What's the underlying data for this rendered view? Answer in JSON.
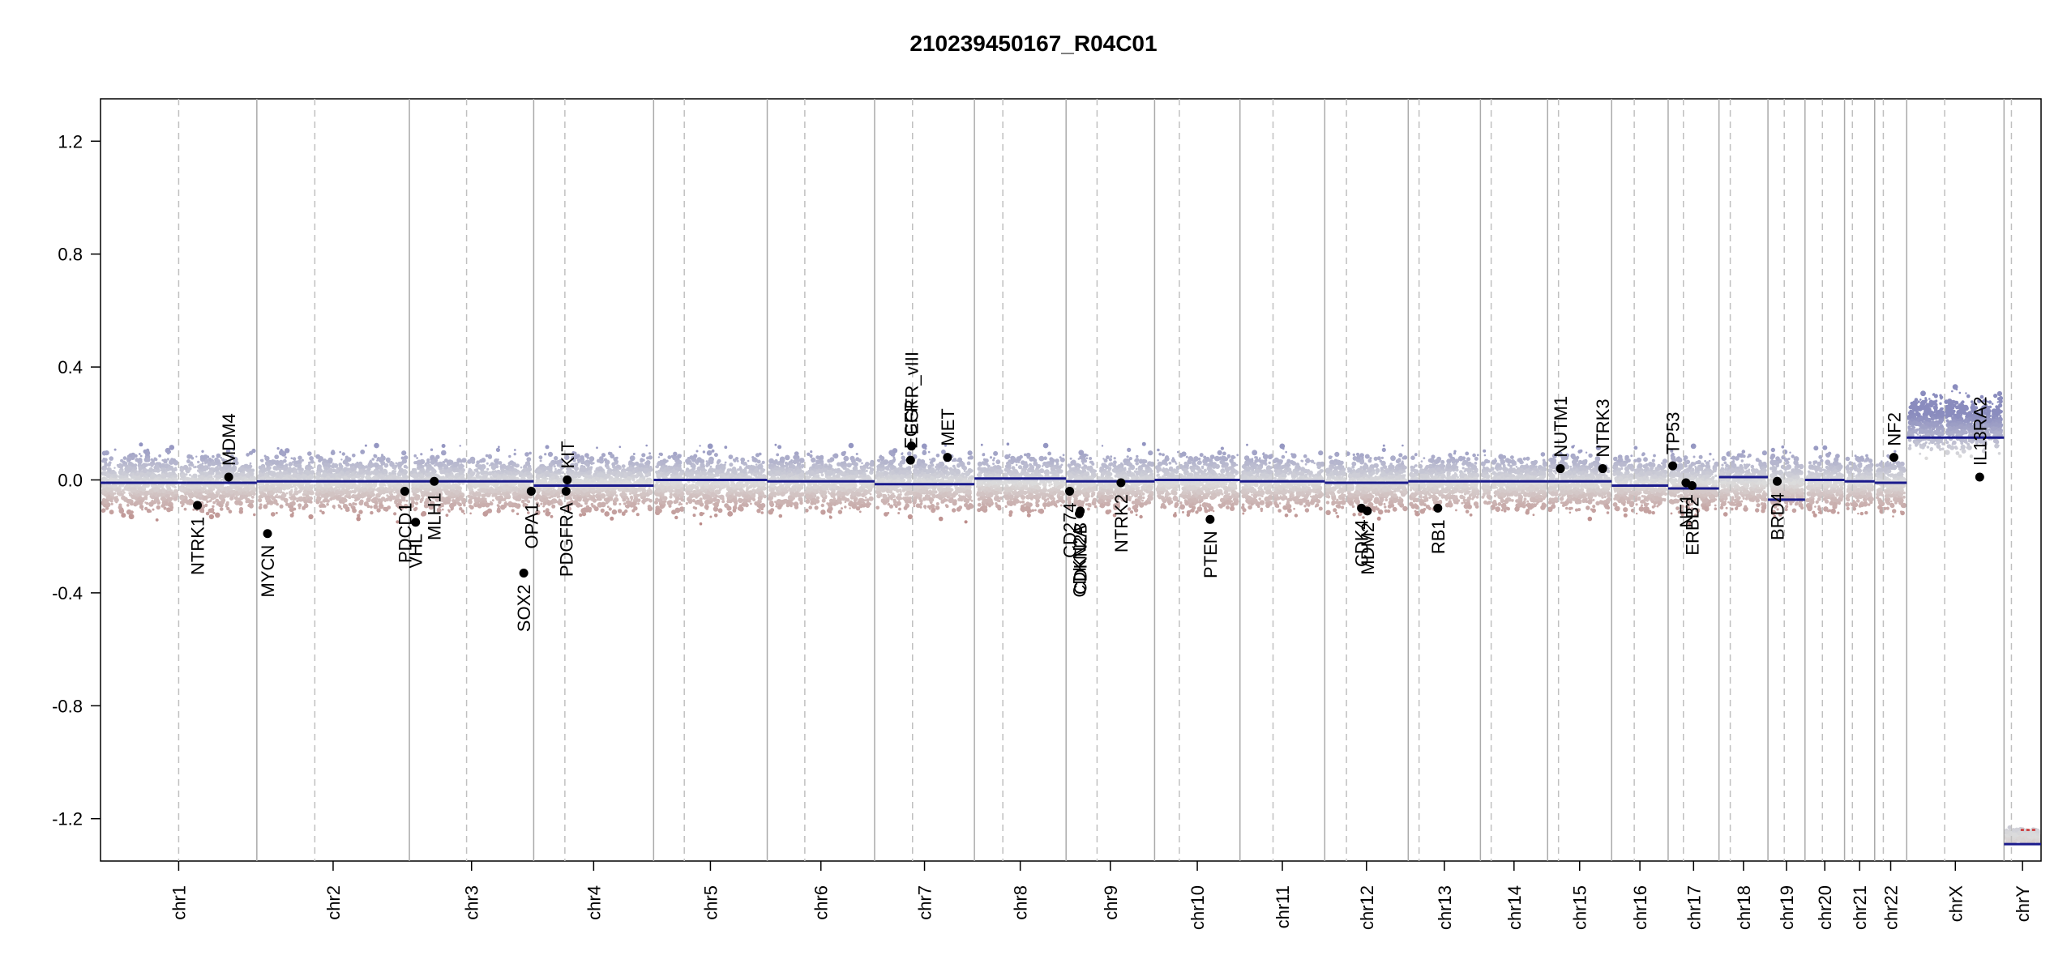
{
  "chart_data": {
    "type": "scatter",
    "title": "210239450167_R04C01",
    "xlabel": "",
    "ylabel": "",
    "ylim": [
      -1.35,
      1.35
    ],
    "y_ticks": [
      -1.2,
      -0.8,
      -0.4,
      0.0,
      0.4,
      0.8,
      1.2
    ],
    "y_tick_labels": [
      "-1.2",
      "-0.8",
      "-0.4",
      "0.0",
      "0.4",
      "0.8",
      "1.2"
    ],
    "grid": false,
    "x_axis": "genomic position (chromosomes)",
    "chromosomes": [
      {
        "name": "chr1",
        "size": 249,
        "centromere": 0.5,
        "segments": [
          {
            "start": 0.0,
            "end": 0.55,
            "value": -0.01
          },
          {
            "start": 0.55,
            "end": 1.0,
            "value": -0.01
          }
        ]
      },
      {
        "name": "chr2",
        "size": 243,
        "centromere": 0.38,
        "segments": [
          {
            "start": 0.0,
            "end": 1.0,
            "value": -0.005
          }
        ]
      },
      {
        "name": "chr3",
        "size": 198,
        "centromere": 0.46,
        "segments": [
          {
            "start": 0.0,
            "end": 1.0,
            "value": -0.005
          }
        ]
      },
      {
        "name": "chr4",
        "size": 191,
        "centromere": 0.26,
        "segments": [
          {
            "start": 0.0,
            "end": 1.0,
            "value": -0.02
          }
        ]
      },
      {
        "name": "chr5",
        "size": 181,
        "centromere": 0.27,
        "segments": [
          {
            "start": 0.0,
            "end": 1.0,
            "value": 0.0
          }
        ]
      },
      {
        "name": "chr6",
        "size": 171,
        "centromere": 0.35,
        "segments": [
          {
            "start": 0.0,
            "end": 1.0,
            "value": -0.005
          }
        ]
      },
      {
        "name": "chr7",
        "size": 159,
        "centromere": 0.38,
        "segments": [
          {
            "start": 0.0,
            "end": 1.0,
            "value": -0.015
          }
        ]
      },
      {
        "name": "chr8",
        "size": 146,
        "centromere": 0.31,
        "segments": [
          {
            "start": 0.0,
            "end": 1.0,
            "value": 0.005
          }
        ]
      },
      {
        "name": "chr9",
        "size": 141,
        "centromere": 0.35,
        "segments": [
          {
            "start": 0.0,
            "end": 1.0,
            "value": -0.005
          }
        ]
      },
      {
        "name": "chr10",
        "size": 136,
        "centromere": 0.29,
        "segments": [
          {
            "start": 0.0,
            "end": 1.0,
            "value": 0.0
          }
        ]
      },
      {
        "name": "chr11",
        "size": 135,
        "centromere": 0.39,
        "segments": [
          {
            "start": 0.0,
            "end": 1.0,
            "value": -0.005
          }
        ]
      },
      {
        "name": "chr12",
        "size": 133,
        "centromere": 0.26,
        "segments": [
          {
            "start": 0.0,
            "end": 1.0,
            "value": -0.01
          }
        ]
      },
      {
        "name": "chr13",
        "size": 115,
        "centromere": 0.15,
        "segments": [
          {
            "start": 0.0,
            "end": 1.0,
            "value": -0.005
          }
        ]
      },
      {
        "name": "chr14",
        "size": 107,
        "centromere": 0.16,
        "segments": [
          {
            "start": 0.0,
            "end": 1.0,
            "value": -0.005
          }
        ]
      },
      {
        "name": "chr15",
        "size": 102,
        "centromere": 0.17,
        "segments": [
          {
            "start": 0.0,
            "end": 1.0,
            "value": -0.005
          }
        ]
      },
      {
        "name": "chr16",
        "size": 90,
        "centromere": 0.4,
        "segments": [
          {
            "start": 0.0,
            "end": 1.0,
            "value": -0.02
          }
        ]
      },
      {
        "name": "chr17",
        "size": 81,
        "centromere": 0.3,
        "segments": [
          {
            "start": 0.0,
            "end": 1.0,
            "value": -0.03
          }
        ]
      },
      {
        "name": "chr18",
        "size": 78,
        "centromere": 0.23,
        "segments": [
          {
            "start": 0.0,
            "end": 1.0,
            "value": 0.01
          }
        ]
      },
      {
        "name": "chr19",
        "size": 59,
        "centromere": 0.44,
        "segments": [
          {
            "start": 0.0,
            "end": 1.0,
            "value": -0.07
          }
        ]
      },
      {
        "name": "chr20",
        "size": 63,
        "centromere": 0.44,
        "segments": [
          {
            "start": 0.0,
            "end": 1.0,
            "value": 0.0
          }
        ]
      },
      {
        "name": "chr21",
        "size": 48,
        "centromere": 0.26,
        "segments": [
          {
            "start": 0.0,
            "end": 1.0,
            "value": -0.005
          }
        ]
      },
      {
        "name": "chr22",
        "size": 51,
        "centromere": 0.27,
        "segments": [
          {
            "start": 0.0,
            "end": 1.0,
            "value": -0.01
          }
        ]
      },
      {
        "name": "chrX",
        "size": 155,
        "centromere": 0.39,
        "segments": [
          {
            "start": 0.0,
            "end": 1.0,
            "value": 0.15
          }
        ]
      },
      {
        "name": "chrY",
        "size": 59,
        "centromere": 0.2,
        "segments": [
          {
            "start": 0.0,
            "end": 1.0,
            "value": -1.29
          }
        ]
      }
    ],
    "probe_bands": {
      "default": {
        "center": -0.01,
        "spread": 0.13
      },
      "chrX": {
        "center": 0.2,
        "spread": 0.13
      },
      "chrY": {
        "center": -1.26,
        "spread": 0.03
      }
    },
    "genes": [
      {
        "name": "NTRK1",
        "chrom": "chr1",
        "pos": 0.62,
        "value": -0.09
      },
      {
        "name": "MDM4",
        "chrom": "chr1",
        "pos": 0.82,
        "value": 0.01
      },
      {
        "name": "MYCN",
        "chrom": "chr2",
        "pos": 0.07,
        "value": -0.19
      },
      {
        "name": "PDCD1",
        "chrom": "chr2",
        "pos": 0.97,
        "value": -0.04
      },
      {
        "name": "VHL",
        "chrom": "chr3",
        "pos": 0.05,
        "value": -0.15
      },
      {
        "name": "MLH1",
        "chrom": "chr3",
        "pos": 0.2,
        "value": -0.005
      },
      {
        "name": "SOX2",
        "chrom": "chr3",
        "pos": 0.92,
        "value": -0.33
      },
      {
        "name": "OPA1",
        "chrom": "chr3",
        "pos": 0.98,
        "value": -0.04
      },
      {
        "name": "PDGFRA",
        "chrom": "chr4",
        "pos": 0.27,
        "value": -0.04
      },
      {
        "name": "KIT",
        "chrom": "chr4",
        "pos": 0.28,
        "value": 0.0
      },
      {
        "name": "EGFR",
        "chrom": "chr7",
        "pos": 0.36,
        "value": 0.07
      },
      {
        "name": "EGFR_vIII",
        "chrom": "chr7",
        "pos": 0.37,
        "value": 0.12
      },
      {
        "name": "MET",
        "chrom": "chr7",
        "pos": 0.73,
        "value": 0.08
      },
      {
        "name": "CD274",
        "chrom": "chr9",
        "pos": 0.04,
        "value": -0.04
      },
      {
        "name": "CDKN2A",
        "chrom": "chr9",
        "pos": 0.15,
        "value": -0.12
      },
      {
        "name": "CDKN2B",
        "chrom": "chr9",
        "pos": 0.16,
        "value": -0.11
      },
      {
        "name": "NTRK2",
        "chrom": "chr9",
        "pos": 0.62,
        "value": -0.01
      },
      {
        "name": "PTEN",
        "chrom": "chr10",
        "pos": 0.65,
        "value": -0.14
      },
      {
        "name": "CDK4",
        "chrom": "chr12",
        "pos": 0.44,
        "value": -0.1
      },
      {
        "name": "MDM2",
        "chrom": "chr12",
        "pos": 0.51,
        "value": -0.11
      },
      {
        "name": "RB1",
        "chrom": "chr13",
        "pos": 0.41,
        "value": -0.1
      },
      {
        "name": "NUTM1",
        "chrom": "chr15",
        "pos": 0.2,
        "value": 0.04
      },
      {
        "name": "NTRK3",
        "chrom": "chr15",
        "pos": 0.86,
        "value": 0.04
      },
      {
        "name": "TP53",
        "chrom": "chr17",
        "pos": 0.09,
        "value": 0.05
      },
      {
        "name": "NF1",
        "chrom": "chr17",
        "pos": 0.35,
        "value": -0.01
      },
      {
        "name": "ERBB2",
        "chrom": "chr17",
        "pos": 0.47,
        "value": -0.02
      },
      {
        "name": "BRD4",
        "chrom": "chr19",
        "pos": 0.25,
        "value": -0.005
      },
      {
        "name": "NF2",
        "chrom": "chr22",
        "pos": 0.6,
        "value": 0.08
      },
      {
        "name": "IL13RA2",
        "chrom": "chrX",
        "pos": 0.75,
        "value": 0.01
      }
    ],
    "colors": {
      "gain": "#8a8cbe",
      "loss": "#b98583",
      "neutral": "#dcdcdc",
      "segment": "#1a1a8c",
      "chrY_alt_segment": "#cc3333",
      "gene_point": "#000000",
      "chrom_border": "#aaaaaa",
      "centromere": "#c0c0c0"
    }
  }
}
